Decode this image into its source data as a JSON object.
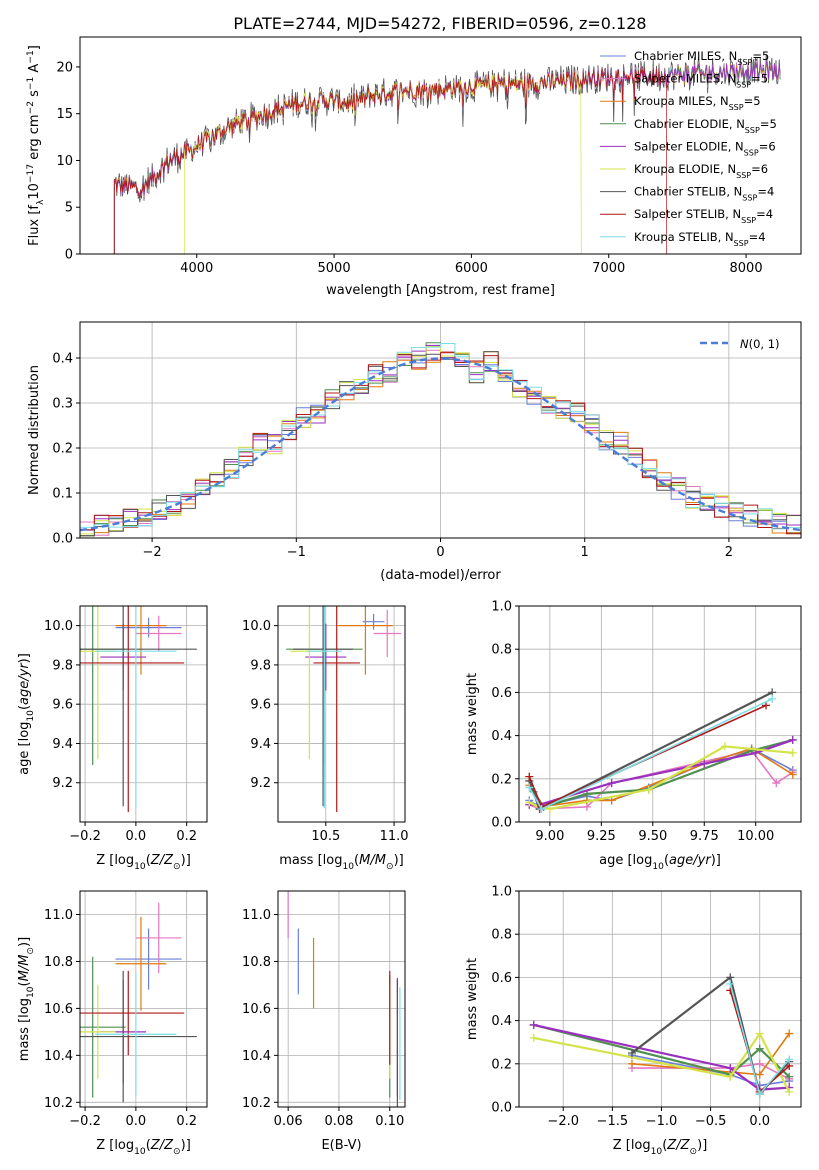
{
  "figure_title": "PLATE=2744, MJD=54272, FIBERID=0596, z=0.128",
  "models": [
    {
      "label": "Chabrier MILES, N_SSP=5",
      "color": "#6a7fdb"
    },
    {
      "label": "Salpeter MILES, N_SSP=5",
      "color": "#e377c2"
    },
    {
      "label": "Kroupa MILES, N_SSP=5",
      "color": "#e07a10"
    },
    {
      "label": "Chabrier ELODIE, N_SSP=5",
      "color": "#4f8f4f"
    },
    {
      "label": "Salpeter ELODIE, N_SSP=6",
      "color": "#9b30c0"
    },
    {
      "label": "Kroupa ELODIE, N_SSP=6",
      "color": "#d4e34a"
    },
    {
      "label": "Chabrier STELIB, N_SSP=4",
      "color": "#555555"
    },
    {
      "label": "Salpeter STELIB, N_SSP=4",
      "color": "#b01818"
    },
    {
      "label": "Kroupa STELIB, N_SSP=4",
      "color": "#7ddde6"
    }
  ],
  "chart_data": [
    {
      "id": "spectrum",
      "type": "line",
      "xlabel": "wavelength [Angstrom, rest frame]",
      "ylabel": "Flux [f_λ 10^-17 erg cm^-2 s^-1 A^-1]",
      "xlim": [
        3150,
        8400
      ],
      "ylim": [
        0,
        23.2
      ],
      "xticks": [
        4000,
        5000,
        6000,
        7000,
        8000
      ],
      "yticks": [
        0,
        5,
        10,
        15,
        20
      ],
      "grid": false,
      "legend": "upper right",
      "continuum": {
        "x": [
          3400,
          3600,
          3800,
          3950,
          4100,
          4300,
          4500,
          4700,
          4900,
          5100,
          5300,
          5500,
          5700,
          5900,
          6100,
          6300,
          6500,
          6700,
          6900,
          7100,
          7300,
          7500,
          7700,
          7900,
          8100
        ],
        "y": [
          7.5,
          7.0,
          10.0,
          11.0,
          12.5,
          14.0,
          15.0,
          16.0,
          16.5,
          16.2,
          17.0,
          17.5,
          17.5,
          17.8,
          18.0,
          18.2,
          18.3,
          18.5,
          18.8,
          19.0,
          19.0,
          19.2,
          19.3,
          19.5,
          19.6
        ]
      },
      "model_starts": [
        3400,
        3400,
        3400,
        3400,
        3400,
        3910,
        3400,
        3400,
        3400
      ],
      "model_ends": [
        8250,
        8250,
        8250,
        8250,
        8250,
        6800,
        8250,
        7420,
        8250
      ]
    },
    {
      "id": "residuals",
      "type": "histogram",
      "xlabel": "(data-model)/error",
      "ylabel": "Normed distribution",
      "xlim": [
        -2.5,
        2.5
      ],
      "ylim": [
        0,
        0.48
      ],
      "xticks": [
        -2,
        -1,
        0,
        1,
        2
      ],
      "yticks": [
        0.0,
        0.1,
        0.2,
        0.3,
        0.4
      ],
      "grid": true,
      "legend_label": "N(0,1)",
      "reference_color": "#4a7ed6",
      "bin_edges_start": -2.5,
      "bin_width": 0.1,
      "base_values": [
        0.02,
        0.03,
        0.03,
        0.04,
        0.05,
        0.06,
        0.07,
        0.09,
        0.11,
        0.13,
        0.15,
        0.18,
        0.21,
        0.21,
        0.24,
        0.27,
        0.28,
        0.31,
        0.33,
        0.34,
        0.36,
        0.37,
        0.39,
        0.4,
        0.41,
        0.41,
        0.4,
        0.37,
        0.39,
        0.37,
        0.33,
        0.32,
        0.3,
        0.29,
        0.28,
        0.25,
        0.22,
        0.21,
        0.18,
        0.15,
        0.13,
        0.11,
        0.09,
        0.08,
        0.07,
        0.06,
        0.05,
        0.04,
        0.03,
        0.03
      ]
    },
    {
      "id": "age_vs_Z",
      "type": "errorbar",
      "xlabel": "Z [log10(Z/Z⊙)]",
      "ylabel": "age [log10(age/yr)]",
      "xlim": [
        -0.22,
        0.28
      ],
      "ylim": [
        9.0,
        10.1
      ],
      "xticks": [
        -0.2,
        0.0,
        0.2
      ],
      "yticks": [
        9.2,
        9.4,
        9.6,
        9.8,
        10.0
      ],
      "grid": true,
      "points": [
        {
          "m": 0,
          "x": 0.05,
          "y": 9.99,
          "xerr": 0.13,
          "yerr": 0.05
        },
        {
          "m": 1,
          "x": 0.09,
          "y": 9.96,
          "xerr": 0.09,
          "yerr": 0.09
        },
        {
          "m": 2,
          "x": 0.02,
          "y": 10.0,
          "xerr": 0.1,
          "yerr": 0.25
        },
        {
          "m": 3,
          "x": -0.17,
          "y": 9.88,
          "xerr": 0.13,
          "yerr": 0.59
        },
        {
          "m": 4,
          "x": -0.05,
          "y": 9.84,
          "xerr": 0.09,
          "yerr": 0.17
        },
        {
          "m": 5,
          "x": -0.15,
          "y": 9.87,
          "xerr": 0.07,
          "yerr": 0.55
        },
        {
          "m": 6,
          "x": -0.05,
          "y": 9.88,
          "xerr": 0.29,
          "yerr": 0.8
        },
        {
          "m": 7,
          "x": -0.03,
          "y": 9.81,
          "xerr": 0.22,
          "yerr": 0.76
        },
        {
          "m": 8,
          "x": 0.0,
          "y": 9.87,
          "xerr": 0.16,
          "yerr": 0.8
        }
      ]
    },
    {
      "id": "age_vs_mass",
      "type": "errorbar",
      "xlabel": "mass [log10(M/M⊙)]",
      "ylabel": "",
      "xlim": [
        10.15,
        11.08
      ],
      "ylim": [
        9.0,
        10.1
      ],
      "xticks": [
        10.5,
        11.0
      ],
      "yticks": [
        9.2,
        9.4,
        9.6,
        9.8,
        10.0
      ],
      "grid": true,
      "points": [
        {
          "m": 0,
          "x": 10.85,
          "y": 10.02,
          "xerr": 0.08,
          "yerr": 0.04
        },
        {
          "m": 1,
          "x": 10.95,
          "y": 9.96,
          "xerr": 0.1,
          "yerr": 0.12
        },
        {
          "m": 2,
          "x": 10.79,
          "y": 10.0,
          "xerr": 0.2,
          "yerr": 0.25
        },
        {
          "m": 3,
          "x": 10.49,
          "y": 9.88,
          "xerr": 0.28,
          "yerr": 0.59
        },
        {
          "m": 4,
          "x": 10.5,
          "y": 9.84,
          "xerr": 0.15,
          "yerr": 0.17
        },
        {
          "m": 5,
          "x": 10.38,
          "y": 9.87,
          "xerr": 0.14,
          "yerr": 0.55
        },
        {
          "m": 6,
          "x": 10.48,
          "y": 9.88,
          "xerr": 0.22,
          "yerr": 0.8
        },
        {
          "m": 7,
          "x": 10.58,
          "y": 9.81,
          "xerr": 0.17,
          "yerr": 0.76
        },
        {
          "m": 8,
          "x": 10.49,
          "y": 9.87,
          "xerr": 0.13,
          "yerr": 0.8
        }
      ]
    },
    {
      "id": "weight_vs_age",
      "type": "line",
      "xlabel": "age [log10(age/yr)]",
      "ylabel": "mass weight",
      "xlim": [
        8.85,
        10.22
      ],
      "ylim": [
        0.0,
        1.0
      ],
      "xticks": [
        9.0,
        9.25,
        9.5,
        9.75,
        10.0
      ],
      "yticks": [
        0.0,
        0.2,
        0.4,
        0.6,
        0.8,
        1.0
      ],
      "grid": true,
      "series": [
        {
          "m": 0,
          "x": [
            8.9,
            8.95,
            9.18,
            9.3,
            9.48,
            9.75,
            9.98,
            10.18
          ],
          "y": [
            0.1,
            0.07,
            0.12,
            0.1,
            0.16,
            0.27,
            0.34,
            0.24
          ]
        },
        {
          "m": 1,
          "x": [
            8.9,
            8.95,
            9.18,
            9.3,
            9.75,
            9.98,
            10.1,
            10.18
          ],
          "y": [
            0.08,
            0.06,
            0.07,
            0.18,
            0.28,
            0.33,
            0.18,
            0.23
          ]
        },
        {
          "m": 2,
          "x": [
            8.9,
            8.95,
            9.18,
            9.3,
            9.75,
            9.98,
            10.18
          ],
          "y": [
            0.17,
            0.07,
            0.1,
            0.1,
            0.27,
            0.34,
            0.22
          ]
        },
        {
          "m": 3,
          "x": [
            8.92,
            8.97,
            9.18,
            9.48,
            9.98,
            10.18
          ],
          "y": [
            0.14,
            0.07,
            0.13,
            0.15,
            0.33,
            0.38
          ]
        },
        {
          "m": 4,
          "x": [
            8.9,
            8.95,
            9.3,
            9.75,
            10.0,
            10.18
          ],
          "y": [
            0.08,
            0.08,
            0.18,
            0.27,
            0.32,
            0.38
          ]
        },
        {
          "m": 5,
          "x": [
            8.9,
            8.95,
            9.0,
            9.48,
            9.85,
            10.18
          ],
          "y": [
            0.09,
            0.07,
            0.06,
            0.15,
            0.35,
            0.32
          ]
        },
        {
          "m": 6,
          "x": [
            8.9,
            8.95,
            10.08
          ],
          "y": [
            0.19,
            0.06,
            0.6
          ]
        },
        {
          "m": 7,
          "x": [
            8.9,
            8.96,
            10.05
          ],
          "y": [
            0.21,
            0.07,
            0.54
          ]
        },
        {
          "m": 8,
          "x": [
            8.9,
            8.96,
            10.08
          ],
          "y": [
            0.16,
            0.06,
            0.57
          ]
        }
      ]
    },
    {
      "id": "mass_vs_Z",
      "type": "errorbar",
      "xlabel": "Z [log10(Z/Z⊙)]",
      "ylabel": "mass [log10(M/M⊙)]",
      "xlim": [
        -0.22,
        0.28
      ],
      "ylim": [
        10.18,
        11.1
      ],
      "xticks": [
        -0.2,
        0.0,
        0.2
      ],
      "yticks": [
        10.2,
        10.4,
        10.6,
        10.8,
        11.0
      ],
      "grid": true,
      "points": [
        {
          "m": 0,
          "x": 0.05,
          "y": 10.81,
          "xerr": 0.13,
          "yerr": 0.13
        },
        {
          "m": 1,
          "x": 0.09,
          "y": 10.9,
          "xerr": 0.09,
          "yerr": 0.15
        },
        {
          "m": 2,
          "x": 0.02,
          "y": 10.79,
          "xerr": 0.1,
          "yerr": 0.2
        },
        {
          "m": 3,
          "x": -0.17,
          "y": 10.52,
          "xerr": 0.13,
          "yerr": 0.3
        },
        {
          "m": 4,
          "x": -0.05,
          "y": 10.5,
          "xerr": 0.09,
          "yerr": 0.22
        },
        {
          "m": 5,
          "x": -0.15,
          "y": 10.5,
          "xerr": 0.07,
          "yerr": 0.2
        },
        {
          "m": 6,
          "x": -0.05,
          "y": 10.48,
          "xerr": 0.29,
          "yerr": 0.28
        },
        {
          "m": 7,
          "x": -0.03,
          "y": 10.58,
          "xerr": 0.22,
          "yerr": 0.18
        },
        {
          "m": 8,
          "x": 0.0,
          "y": 10.49,
          "xerr": 0.16,
          "yerr": 0.26
        }
      ]
    },
    {
      "id": "mass_vs_EBV",
      "type": "errorbar",
      "xlabel": "E(B-V)",
      "ylabel": "",
      "xlim": [
        0.056,
        0.106
      ],
      "ylim": [
        10.18,
        11.1
      ],
      "xticks": [
        0.06,
        0.08,
        0.1
      ],
      "yticks": [
        10.2,
        10.4,
        10.6,
        10.8,
        11.0
      ],
      "grid": true,
      "points": [
        {
          "m": 0,
          "x": 0.064,
          "y": 10.8,
          "xerr": 0.0,
          "yerr": 0.14
        },
        {
          "m": 1,
          "x": 0.06,
          "y": 11.0,
          "xerr": 0.0,
          "yerr": 0.1
        },
        {
          "m": 2,
          "x": 0.07,
          "y": 10.75,
          "xerr": 0.0,
          "yerr": 0.15
        },
        {
          "m": 3,
          "x": 0.1,
          "y": 10.48,
          "xerr": 0.0,
          "yerr": 0.26
        },
        {
          "m": 4,
          "x": 0.103,
          "y": 10.48,
          "xerr": 0.0,
          "yerr": 0.25
        },
        {
          "m": 5,
          "x": 0.1,
          "y": 10.5,
          "xerr": 0.0,
          "yerr": 0.2
        },
        {
          "m": 6,
          "x": 0.103,
          "y": 10.45,
          "xerr": 0.0,
          "yerr": 0.27
        },
        {
          "m": 7,
          "x": 0.1,
          "y": 10.56,
          "xerr": 0.0,
          "yerr": 0.2
        },
        {
          "m": 8,
          "x": 0.104,
          "y": 10.45,
          "xerr": 0.0,
          "yerr": 0.24
        }
      ]
    },
    {
      "id": "weight_vs_Z",
      "type": "line",
      "xlabel": "Z [log10(Z/Z⊙)]",
      "ylabel": "mass weight",
      "xlim": [
        -2.45,
        0.42
      ],
      "ylim": [
        0.0,
        1.0
      ],
      "xticks": [
        -2.0,
        -1.5,
        -1.0,
        -0.5,
        0.0
      ],
      "yticks": [
        0.0,
        0.2,
        0.4,
        0.6,
        0.8,
        1.0
      ],
      "grid": true,
      "series": [
        {
          "m": 0,
          "x": [
            -1.3,
            -0.3,
            0.0,
            0.3
          ],
          "y": [
            0.24,
            0.15,
            0.1,
            0.12
          ]
        },
        {
          "m": 1,
          "x": [
            -1.3,
            -0.3,
            0.0,
            0.3
          ],
          "y": [
            0.18,
            0.18,
            0.2,
            0.13
          ]
        },
        {
          "m": 2,
          "x": [
            -1.3,
            0.0,
            0.3
          ],
          "y": [
            0.2,
            0.15,
            0.34
          ]
        },
        {
          "m": 3,
          "x": [
            -2.3,
            -0.3,
            0.0,
            0.3
          ],
          "y": [
            0.38,
            0.15,
            0.27,
            0.14
          ]
        },
        {
          "m": 4,
          "x": [
            -2.3,
            -0.3,
            0.0,
            0.3
          ],
          "y": [
            0.38,
            0.18,
            0.08,
            0.09
          ]
        },
        {
          "m": 5,
          "x": [
            -2.3,
            -0.3,
            0.0,
            0.3
          ],
          "y": [
            0.32,
            0.14,
            0.34,
            0.07
          ]
        },
        {
          "m": 6,
          "x": [
            -1.3,
            -0.3,
            0.0,
            0.3
          ],
          "y": [
            0.25,
            0.6,
            0.06,
            0.21
          ]
        },
        {
          "m": 7,
          "x": [
            -0.3,
            0.0,
            0.3
          ],
          "y": [
            0.54,
            0.07,
            0.19
          ]
        },
        {
          "m": 8,
          "x": [
            -0.3,
            0.0,
            0.3
          ],
          "y": [
            0.57,
            0.06,
            0.22
          ]
        }
      ]
    }
  ]
}
